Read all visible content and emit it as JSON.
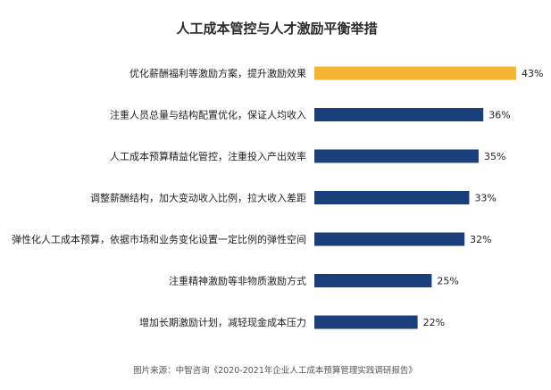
{
  "chart_data": {
    "type": "bar",
    "orientation": "horizontal",
    "title": "人工成本管控与人才激励平衡举措",
    "categories": [
      "优化薪酬福利等激励方案，提升激励效果",
      "注重人员总量与结构配置优化，保证人均收入",
      "人工成本预算精益化管控，注重投入产出效率",
      "调整薪酬结构，加大变动收入比例，拉大收入差距",
      "弹性化人工成本预算，依据市场和业务变化设置一定比例的弹性空间",
      "注重精神激励等非物质激励方式",
      "增加长期激励计划，减轻现金成本压力"
    ],
    "values": [
      43,
      36,
      35,
      33,
      32,
      25,
      22
    ],
    "labels": [
      "43%",
      "36%",
      "35%",
      "33%",
      "32%",
      "25%",
      "22%"
    ],
    "unit": "%",
    "xlabel": "",
    "ylabel": "",
    "xlim": [
      0,
      43
    ],
    "grid": false,
    "colors": {
      "highlight": "#F5B533",
      "default": "#1B3F7A"
    },
    "source": "图片来源：中智咨询《2020-2021年企业人工成本预算管理实践调研报告》"
  }
}
